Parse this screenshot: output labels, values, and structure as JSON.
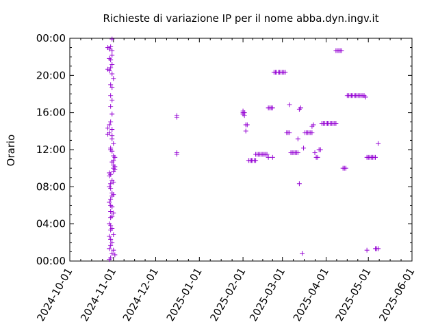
{
  "chart_data": {
    "type": "scatter",
    "title": "Richieste di variazione IP per il nome abba.dyn.ingv.it",
    "xlabel": "",
    "ylabel": "Orario",
    "x_axis_type": "date",
    "y_axis_type": "time-of-day",
    "xlim": [
      "2024-10-01",
      "2025-06-01"
    ],
    "ylim": [
      "00:00",
      "24:00"
    ],
    "x_ticks": [
      "2024-10-01",
      "2024-11-01",
      "2024-12-01",
      "2025-01-01",
      "2025-02-01",
      "2025-03-01",
      "2025-04-01",
      "2025-05-01",
      "2025-06-01"
    ],
    "y_ticks": [
      "00:00",
      "04:00",
      "08:00",
      "12:00",
      "16:00",
      "20:00",
      "00:00"
    ],
    "grid": false,
    "legend": "none",
    "marker": "+",
    "marker_color": "#9400d3",
    "series": [
      {
        "points": [
          [
            "2024-10-28",
            "23:00"
          ],
          [
            "2024-10-29",
            "22:50"
          ],
          [
            "2024-10-30",
            "23:05"
          ],
          [
            "2024-10-31",
            "23:55"
          ],
          [
            "2024-10-31",
            "22:40"
          ],
          [
            "2024-10-31",
            "22:10"
          ],
          [
            "2024-10-29",
            "21:50"
          ],
          [
            "2024-10-30",
            "21:40"
          ],
          [
            "2024-10-31",
            "21:10"
          ],
          [
            "2024-10-28",
            "20:40"
          ],
          [
            "2024-10-29",
            "20:30"
          ],
          [
            "2024-10-30",
            "20:50"
          ],
          [
            "2024-10-31",
            "20:10"
          ],
          [
            "2024-11-01",
            "19:40"
          ],
          [
            "2024-10-30",
            "19:00"
          ],
          [
            "2024-10-31",
            "18:40"
          ],
          [
            "2024-10-30",
            "17:50"
          ],
          [
            "2024-10-31",
            "17:20"
          ],
          [
            "2024-10-30",
            "16:40"
          ],
          [
            "2024-10-31",
            "15:50"
          ],
          [
            "2024-10-30",
            "15:00"
          ],
          [
            "2024-10-29",
            "14:40"
          ],
          [
            "2024-10-28",
            "14:20"
          ],
          [
            "2024-10-29",
            "13:50"
          ],
          [
            "2024-10-28",
            "13:40"
          ],
          [
            "2024-10-31",
            "14:10"
          ],
          [
            "2024-10-31",
            "13:30"
          ],
          [
            "2024-10-31",
            "13:10"
          ],
          [
            "2024-11-01",
            "12:40"
          ],
          [
            "2024-10-30",
            "12:10"
          ],
          [
            "2024-10-30",
            "12:00"
          ],
          [
            "2024-10-31",
            "11:50"
          ],
          [
            "2024-11-01",
            "11:20"
          ],
          [
            "2024-11-02",
            "11:10"
          ],
          [
            "2024-11-01",
            "10:50"
          ],
          [
            "2024-10-31",
            "10:40"
          ],
          [
            "2024-11-01",
            "10:20"
          ],
          [
            "2024-11-02",
            "10:10"
          ],
          [
            "2024-11-01",
            "10:00"
          ],
          [
            "2024-11-02",
            "09:50"
          ],
          [
            "2024-11-01",
            "09:40"
          ],
          [
            "2024-10-29",
            "09:30"
          ],
          [
            "2024-10-30",
            "09:20"
          ],
          [
            "2024-10-29",
            "09:10"
          ],
          [
            "2024-10-31",
            "08:40"
          ],
          [
            "2024-11-01",
            "08:30"
          ],
          [
            "2024-10-30",
            "08:20"
          ],
          [
            "2024-10-29",
            "08:00"
          ],
          [
            "2024-10-30",
            "07:50"
          ],
          [
            "2024-10-31",
            "07:20"
          ],
          [
            "2024-11-01",
            "07:10"
          ],
          [
            "2024-10-31",
            "07:00"
          ],
          [
            "2024-10-30",
            "06:40"
          ],
          [
            "2024-10-29",
            "06:20"
          ],
          [
            "2024-10-30",
            "06:00"
          ],
          [
            "2024-10-31",
            "05:50"
          ],
          [
            "2024-10-30",
            "05:20"
          ],
          [
            "2024-11-01",
            "05:10"
          ],
          [
            "2024-10-31",
            "04:50"
          ],
          [
            "2024-10-30",
            "04:40"
          ],
          [
            "2024-10-29",
            "04:00"
          ],
          [
            "2024-10-30",
            "03:50"
          ],
          [
            "2024-10-31",
            "03:30"
          ],
          [
            "2024-10-30",
            "03:20"
          ],
          [
            "2024-11-01",
            "02:50"
          ],
          [
            "2024-10-29",
            "02:40"
          ],
          [
            "2024-10-30",
            "02:20"
          ],
          [
            "2024-10-31",
            "02:00"
          ],
          [
            "2024-10-30",
            "01:40"
          ],
          [
            "2024-10-29",
            "01:20"
          ],
          [
            "2024-11-01",
            "01:10"
          ],
          [
            "2024-10-31",
            "00:50"
          ],
          [
            "2024-11-02",
            "00:40"
          ],
          [
            "2024-10-30",
            "00:20"
          ],
          [
            "2024-10-29",
            "00:10"
          ],
          [
            "2024-12-16",
            "15:30"
          ],
          [
            "2024-12-16",
            "15:40"
          ],
          [
            "2024-12-16",
            "11:40"
          ],
          [
            "2024-12-16",
            "11:30"
          ],
          [
            "2025-02-01",
            "16:00"
          ],
          [
            "2025-02-01",
            "15:50"
          ],
          [
            "2025-02-01",
            "16:10"
          ],
          [
            "2025-02-02",
            "16:00"
          ],
          [
            "2025-02-02",
            "15:40"
          ],
          [
            "2025-02-03",
            "14:40"
          ],
          [
            "2025-02-04",
            "14:40"
          ],
          [
            "2025-02-03",
            "14:00"
          ],
          [
            "2025-02-05",
            "10:50"
          ],
          [
            "2025-02-06",
            "10:50"
          ],
          [
            "2025-02-07",
            "10:50"
          ],
          [
            "2025-02-08",
            "10:50"
          ],
          [
            "2025-02-09",
            "10:50"
          ],
          [
            "2025-02-10",
            "10:50"
          ],
          [
            "2025-02-10",
            "11:30"
          ],
          [
            "2025-02-11",
            "11:30"
          ],
          [
            "2025-02-12",
            "11:30"
          ],
          [
            "2025-02-13",
            "11:30"
          ],
          [
            "2025-02-14",
            "11:30"
          ],
          [
            "2025-02-15",
            "11:30"
          ],
          [
            "2025-02-16",
            "11:30"
          ],
          [
            "2025-02-17",
            "11:30"
          ],
          [
            "2025-02-18",
            "11:30"
          ],
          [
            "2025-02-19",
            "11:10"
          ],
          [
            "2025-02-22",
            "11:10"
          ],
          [
            "2025-02-19",
            "16:30"
          ],
          [
            "2025-02-20",
            "16:30"
          ],
          [
            "2025-02-21",
            "16:30"
          ],
          [
            "2025-02-22",
            "16:30"
          ],
          [
            "2025-02-23",
            "20:20"
          ],
          [
            "2025-02-24",
            "20:20"
          ],
          [
            "2025-02-25",
            "20:20"
          ],
          [
            "2025-02-26",
            "20:20"
          ],
          [
            "2025-02-27",
            "20:20"
          ],
          [
            "2025-02-28",
            "20:20"
          ],
          [
            "2025-03-01",
            "20:20"
          ],
          [
            "2025-03-02",
            "20:20"
          ],
          [
            "2025-03-03",
            "20:20"
          ],
          [
            "2025-03-04",
            "13:50"
          ],
          [
            "2025-03-05",
            "13:50"
          ],
          [
            "2025-03-06",
            "13:50"
          ],
          [
            "2025-03-06",
            "16:50"
          ],
          [
            "2025-03-07",
            "11:40"
          ],
          [
            "2025-03-08",
            "11:40"
          ],
          [
            "2025-03-09",
            "11:40"
          ],
          [
            "2025-03-10",
            "11:40"
          ],
          [
            "2025-03-11",
            "11:40"
          ],
          [
            "2025-03-12",
            "11:40"
          ],
          [
            "2025-03-12",
            "13:10"
          ],
          [
            "2025-03-13",
            "16:20"
          ],
          [
            "2025-03-14",
            "16:30"
          ],
          [
            "2025-03-13",
            "08:20"
          ],
          [
            "2025-03-15",
            "00:50"
          ],
          [
            "2025-03-16",
            "12:10"
          ],
          [
            "2025-03-17",
            "13:50"
          ],
          [
            "2025-03-18",
            "13:50"
          ],
          [
            "2025-03-19",
            "13:50"
          ],
          [
            "2025-03-20",
            "13:50"
          ],
          [
            "2025-03-21",
            "13:50"
          ],
          [
            "2025-03-22",
            "13:50"
          ],
          [
            "2025-03-22",
            "14:30"
          ],
          [
            "2025-03-23",
            "14:40"
          ],
          [
            "2025-03-24",
            "11:40"
          ],
          [
            "2025-03-25",
            "11:10"
          ],
          [
            "2025-03-26",
            "11:10"
          ],
          [
            "2025-03-27",
            "12:00"
          ],
          [
            "2025-03-28",
            "12:00"
          ],
          [
            "2025-03-29",
            "14:50"
          ],
          [
            "2025-03-30",
            "14:50"
          ],
          [
            "2025-03-31",
            "14:50"
          ],
          [
            "2025-04-01",
            "14:50"
          ],
          [
            "2025-04-02",
            "14:50"
          ],
          [
            "2025-04-03",
            "14:50"
          ],
          [
            "2025-04-04",
            "14:50"
          ],
          [
            "2025-04-05",
            "14:50"
          ],
          [
            "2025-04-06",
            "14:50"
          ],
          [
            "2025-04-07",
            "14:50"
          ],
          [
            "2025-04-08",
            "14:50"
          ],
          [
            "2025-04-08",
            "22:40"
          ],
          [
            "2025-04-09",
            "22:40"
          ],
          [
            "2025-04-10",
            "22:40"
          ],
          [
            "2025-04-11",
            "22:40"
          ],
          [
            "2025-04-12",
            "22:40"
          ],
          [
            "2025-04-13",
            "10:00"
          ],
          [
            "2025-04-14",
            "10:00"
          ],
          [
            "2025-04-15",
            "10:00"
          ],
          [
            "2025-04-16",
            "17:50"
          ],
          [
            "2025-04-17",
            "17:50"
          ],
          [
            "2025-04-18",
            "17:50"
          ],
          [
            "2025-04-19",
            "17:50"
          ],
          [
            "2025-04-20",
            "17:50"
          ],
          [
            "2025-04-21",
            "17:50"
          ],
          [
            "2025-04-22",
            "17:50"
          ],
          [
            "2025-04-23",
            "17:50"
          ],
          [
            "2025-04-24",
            "17:50"
          ],
          [
            "2025-04-25",
            "17:50"
          ],
          [
            "2025-04-26",
            "17:50"
          ],
          [
            "2025-04-27",
            "17:50"
          ],
          [
            "2025-04-28",
            "17:50"
          ],
          [
            "2025-04-29",
            "17:40"
          ],
          [
            "2025-04-30",
            "11:10"
          ],
          [
            "2025-05-01",
            "11:10"
          ],
          [
            "2025-05-02",
            "11:10"
          ],
          [
            "2025-05-03",
            "11:10"
          ],
          [
            "2025-05-04",
            "11:10"
          ],
          [
            "2025-05-05",
            "11:10"
          ],
          [
            "2025-05-06",
            "11:10"
          ],
          [
            "2025-04-30",
            "01:10"
          ],
          [
            "2025-05-06",
            "01:20"
          ],
          [
            "2025-05-07",
            "01:20"
          ],
          [
            "2025-05-08",
            "01:20"
          ],
          [
            "2025-05-08",
            "12:40"
          ]
        ]
      }
    ]
  }
}
